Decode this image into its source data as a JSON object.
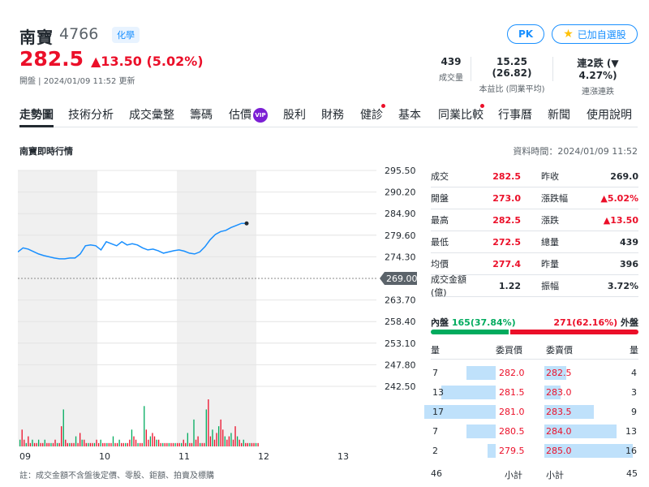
{
  "header": {
    "name": "南寶",
    "code": "4766",
    "tag": "化學",
    "price": "282.5",
    "change": "▲13.50 (5.02%)",
    "status": "開盤 | 2024/01/09 11:52 更新",
    "pk_label": "PK",
    "watch_label": "已加自選股"
  },
  "stats": [
    {
      "value": "439",
      "label": "成交量"
    },
    {
      "value": "15.25 (26.82)",
      "label": "本益比 (同業平均)"
    },
    {
      "value_prefix": "連2跌",
      "value_suffix": "(▼ 4.27%)",
      "label": "連漲連跌"
    }
  ],
  "tabs": [
    "走勢圖",
    "技術分析",
    "成交彙整",
    "籌碼",
    "估價",
    "股利",
    "財務",
    "健診",
    "基本",
    "同業比較",
    "行事曆",
    "新聞",
    "使用說明"
  ],
  "vip_label": "VIP",
  "section_title": "南寶即時行情",
  "data_time": "資料時間：2024/01/09 11:52",
  "chart_data": {
    "type": "line",
    "y_ticks": [
      "295.50",
      "290.20",
      "284.90",
      "279.60",
      "274.30",
      "269.00",
      "263.70",
      "258.40",
      "253.10",
      "247.80",
      "242.50"
    ],
    "ylim": [
      242.5,
      295.5
    ],
    "reference_price": "269.00",
    "x_ticks": [
      "09",
      "10",
      "11",
      "12",
      "13"
    ],
    "series": [
      {
        "values": [
          275.5,
          276.5,
          276.2,
          275.6,
          275.0,
          274.6,
          274.3,
          274.0,
          273.8,
          273.8,
          274.0,
          274.0,
          275.0,
          277.0,
          277.2,
          277.0,
          276.0,
          278.0,
          277.5,
          277.0,
          278.0,
          277.2,
          277.5,
          277.2,
          276.5,
          276.0,
          276.2,
          275.8,
          275.2,
          275.5,
          275.8,
          276.0,
          275.7,
          275.2,
          275.0,
          275.5,
          276.8,
          278.5,
          279.8,
          280.5,
          280.8,
          281.5,
          282.0,
          282.5,
          282.5
        ]
      }
    ],
    "volumes": [
      2,
      5,
      2,
      1,
      3,
      1,
      2,
      1,
      1,
      2,
      1,
      1,
      2,
      1,
      1,
      1,
      1,
      2,
      1,
      1,
      6,
      11,
      2,
      1,
      1,
      1,
      1,
      3,
      1,
      4,
      2,
      2,
      1,
      1,
      1,
      1,
      1,
      2,
      1,
      2,
      1,
      1,
      1,
      1,
      1,
      3,
      1,
      1,
      2,
      1,
      1,
      1,
      1,
      2,
      5,
      3,
      2,
      1,
      1,
      1,
      12,
      5,
      2,
      3,
      4,
      3,
      2,
      2,
      1,
      1,
      1,
      1,
      1,
      1,
      1,
      1,
      1,
      1,
      1,
      2,
      1,
      4,
      1,
      1,
      8,
      2,
      3,
      1,
      1,
      1,
      11,
      14,
      3,
      5,
      2,
      4,
      6,
      8,
      5,
      3,
      2,
      3,
      4,
      2,
      6,
      3,
      2,
      1,
      2,
      1,
      1,
      1,
      1,
      1,
      1,
      1
    ]
  },
  "quote": [
    {
      "l1": "成交",
      "v1": "282.5",
      "c1": "red",
      "l2": "昨收",
      "v2": "269.0",
      "c2": ""
    },
    {
      "l1": "開盤",
      "v1": "273.0",
      "c1": "red",
      "l2": "漲跌幅",
      "v2": "▲5.02%",
      "c2": "red"
    },
    {
      "l1": "最高",
      "v1": "282.5",
      "c1": "red",
      "l2": "漲跌",
      "v2": "▲13.50",
      "c2": "red"
    },
    {
      "l1": "最低",
      "v1": "272.5",
      "c1": "red",
      "l2": "總量",
      "v2": "439",
      "c2": ""
    },
    {
      "l1": "均價",
      "v1": "277.4",
      "c1": "red",
      "l2": "昨量",
      "v2": "396",
      "c2": ""
    },
    {
      "l1": "成交金額(億)",
      "v1": "1.22",
      "c1": "",
      "l2": "振幅",
      "v2": "3.72%",
      "c2": ""
    }
  ],
  "inout": {
    "in_label": "內盤",
    "in_value": "165",
    "in_pct": "(37.84%)",
    "out_value": "271",
    "out_pct": "(62.16%)",
    "out_label": "外盤",
    "in_fraction": 0.3784
  },
  "orderbook": {
    "headers": {
      "bid_qty": "量",
      "bid_price": "委買價",
      "ask_price": "委賣價",
      "ask_qty": "量"
    },
    "rows": [
      {
        "bid_qty": "7",
        "bid_price": "282.0",
        "ask_price": "282.5",
        "ask_qty": "4"
      },
      {
        "bid_qty": "13",
        "bid_price": "281.5",
        "ask_price": "283.0",
        "ask_qty": "3"
      },
      {
        "bid_qty": "17",
        "bid_price": "281.0",
        "ask_price": "283.5",
        "ask_qty": "9"
      },
      {
        "bid_qty": "7",
        "bid_price": "280.5",
        "ask_price": "284.0",
        "ask_qty": "13"
      },
      {
        "bid_qty": "2",
        "bid_price": "279.5",
        "ask_price": "285.0",
        "ask_qty": "16"
      }
    ],
    "bid_total": "46",
    "subtotal_label": "小計",
    "ask_total": "45"
  },
  "footnote": "註：成交金額不含盤後定價、零股、鉅額、拍賣及標購",
  "colors": {
    "up": "#eb0f29",
    "down": "#00ab5e",
    "line": "#188fff",
    "accent": "#188fff"
  }
}
